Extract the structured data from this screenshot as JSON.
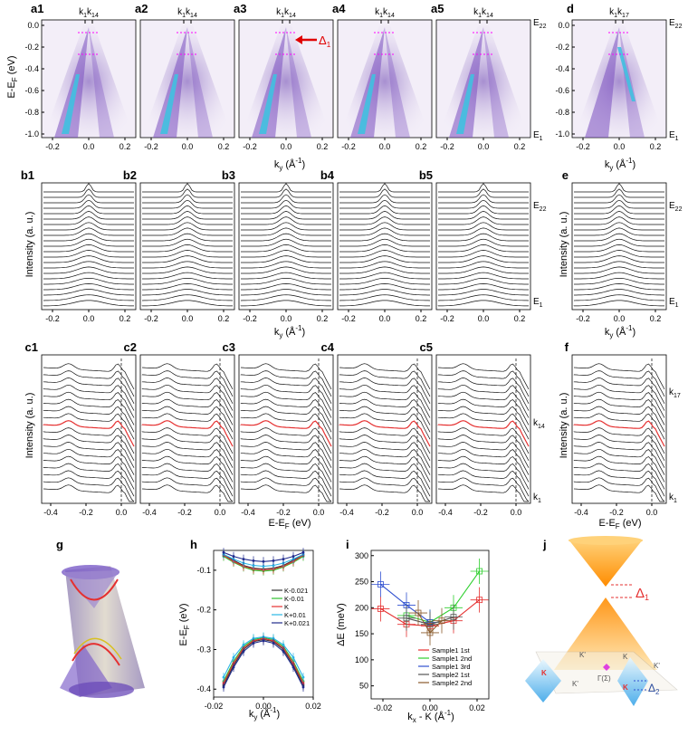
{
  "panels": {
    "a": [
      "a1",
      "a2",
      "a3",
      "a4",
      "a5"
    ],
    "b": [
      "b1",
      "b2",
      "b3",
      "b4",
      "b5"
    ],
    "c": [
      "c1",
      "c2",
      "c3",
      "c4",
      "c5"
    ],
    "d": "d",
    "e": "e",
    "f": "f",
    "g": "g",
    "h": "h",
    "i": "i",
    "j": "j"
  },
  "row_a": {
    "ylabel": "E-E",
    "ylabel_sub": "F",
    "ylabel_unit": " (eV)",
    "yticks": [
      "0.0",
      "-0.2",
      "-0.4",
      "-0.6",
      "-0.8",
      "-1.0"
    ],
    "xticks": [
      "-0.2",
      "0.0",
      "0.2"
    ],
    "xlabel": "k",
    "xlabel_sub": "y",
    "xlabel_unit": " (Å",
    "xlabel_sup": "-1",
    "xlabel_close": ")",
    "top_marker": "k",
    "top_marker_sub1": "1",
    "top_marker_mid": "k",
    "top_marker_sub2": "14",
    "d_marker_sub2": "17",
    "right_top": "E",
    "right_top_sub": "22",
    "right_bottom": "E",
    "right_bottom_sub": "1",
    "delta": "Δ",
    "delta_sub": "1"
  },
  "row_b": {
    "ylabel": "Intensity (a. u.)",
    "xticks": [
      "-0.2",
      "0.0",
      "0.2"
    ],
    "right_top": "E",
    "right_top_sub": "22",
    "right_bottom": "E",
    "right_bottom_sub": "1"
  },
  "row_c": {
    "ylabel": "Intensity (a. u.)",
    "xticks": [
      "-0.4",
      "-0.2",
      "0.0"
    ],
    "xlabel": "E-E",
    "xlabel_sub": "F",
    "xlabel_unit": " (eV)",
    "right_mid": "k",
    "right_mid_sub": "14",
    "right_bottom": "k",
    "right_bottom_sub": "1",
    "f_right_top": "k",
    "f_right_top_sub": "17"
  },
  "panel_h": {
    "ylabel": "E-E",
    "ylabel_sub": "F",
    "ylabel_unit": " (eV)",
    "yticks": [
      "-0.1",
      "-0.2",
      "-0.3",
      "-0.4"
    ],
    "xticks": [
      "-0.02",
      "0.00",
      "0.02"
    ],
    "xlabel": "k",
    "xlabel_sub": "y",
    "xlabel_unit": " (Å",
    "xlabel_sup": "-1",
    "xlabel_close": ")",
    "legend": [
      {
        "name": "K-0.021",
        "color": "#333333"
      },
      {
        "name": "K-0.01",
        "color": "#2fbf2f"
      },
      {
        "name": "K",
        "color": "#e53030"
      },
      {
        "name": "K+0.01",
        "color": "#29b6e6"
      },
      {
        "name": "K+0.021",
        "color": "#1f2a8c"
      }
    ]
  },
  "panel_i": {
    "ylabel": "ΔE (meV)",
    "yticks": [
      "300",
      "250",
      "200",
      "150",
      "100",
      "50"
    ],
    "xticks": [
      "-0.02",
      "0.00",
      "0.02"
    ],
    "xlabel": "k",
    "xlabel_sub": "x",
    "xlabel_mid": " - K (Å",
    "xlabel_sup": "-1",
    "xlabel_close": ")",
    "legend": [
      {
        "name": "Sample1 1st",
        "color": "#e53030"
      },
      {
        "name": "Sample1 2nd",
        "color": "#2fcf2f"
      },
      {
        "name": "Sample1 3rd",
        "color": "#3050d0"
      },
      {
        "name": "Sample2 1st",
        "color": "#555555"
      },
      {
        "name": "Sample2 2nd",
        "color": "#8a5a2a"
      }
    ]
  },
  "panel_j": {
    "delta1": "Δ",
    "delta1_sub": "1",
    "delta2": "Δ",
    "delta2_sub": "2",
    "gamma": "Γ(Σ)",
    "k_labels": [
      "K",
      "K'",
      "K",
      "K'",
      "K",
      "K'"
    ]
  },
  "colors": {
    "spectral_bg": "#f3eef8",
    "spectral_mid": "#7a4fc0",
    "spectral_hot": "#40c0e0",
    "edc_highlight": "#e53030",
    "marker_dash": "#ff00ff",
    "arrow": "#e00000"
  },
  "chart_data": [
    {
      "type": "line",
      "panel": "h",
      "xlim": [
        -0.02,
        0.02
      ],
      "ylim": [
        -0.42,
        -0.05
      ],
      "x": [
        -0.016,
        -0.012,
        -0.008,
        -0.004,
        0.0,
        0.004,
        0.008,
        0.012,
        0.016
      ],
      "series": [
        {
          "name": "K-0.021",
          "upper": [
            -0.06,
            -0.075,
            -0.088,
            -0.095,
            -0.097,
            -0.095,
            -0.088,
            -0.075,
            -0.06
          ],
          "lower": [
            -0.39,
            -0.34,
            -0.3,
            -0.28,
            -0.275,
            -0.28,
            -0.3,
            -0.34,
            -0.39
          ]
        },
        {
          "name": "K-0.01",
          "upper": [
            -0.065,
            -0.08,
            -0.092,
            -0.1,
            -0.102,
            -0.1,
            -0.092,
            -0.08,
            -0.065
          ],
          "lower": [
            -0.38,
            -0.33,
            -0.292,
            -0.275,
            -0.27,
            -0.275,
            -0.292,
            -0.33,
            -0.38
          ]
        },
        {
          "name": "K",
          "upper": [
            -0.062,
            -0.078,
            -0.09,
            -0.097,
            -0.099,
            -0.097,
            -0.09,
            -0.078,
            -0.062
          ],
          "lower": [
            -0.385,
            -0.335,
            -0.296,
            -0.278,
            -0.272,
            -0.278,
            -0.296,
            -0.335,
            -0.385
          ]
        },
        {
          "name": "K+0.01",
          "upper": [
            -0.06,
            -0.072,
            -0.082,
            -0.088,
            -0.09,
            -0.088,
            -0.082,
            -0.072,
            -0.06
          ],
          "lower": [
            -0.37,
            -0.32,
            -0.288,
            -0.272,
            -0.268,
            -0.272,
            -0.288,
            -0.32,
            -0.37
          ]
        },
        {
          "name": "K+0.021",
          "upper": [
            -0.055,
            -0.065,
            -0.072,
            -0.076,
            -0.078,
            -0.076,
            -0.072,
            -0.065,
            -0.055
          ],
          "lower": [
            -0.395,
            -0.345,
            -0.305,
            -0.284,
            -0.278,
            -0.284,
            -0.305,
            -0.345,
            -0.395
          ]
        }
      ]
    },
    {
      "type": "line",
      "panel": "i",
      "xlim": [
        -0.025,
        0.025
      ],
      "ylim": [
        25,
        310
      ],
      "series": [
        {
          "name": "Sample1 1st",
          "x": [
            -0.021,
            -0.01,
            0.0,
            0.01,
            0.021
          ],
          "y": [
            198,
            168,
            165,
            175,
            215
          ]
        },
        {
          "name": "Sample1 2nd",
          "x": [
            -0.01,
            0.0,
            0.01,
            0.021
          ],
          "y": [
            185,
            172,
            200,
            270
          ]
        },
        {
          "name": "Sample1 3rd",
          "x": [
            -0.021,
            -0.01,
            0.0
          ],
          "y": [
            245,
            205,
            172
          ]
        },
        {
          "name": "Sample2 1st",
          "x": [
            -0.01,
            0.0,
            0.01
          ],
          "y": [
            180,
            168,
            182
          ]
        },
        {
          "name": "Sample2 2nd",
          "x": [
            -0.005,
            0.0,
            0.005
          ],
          "y": [
            190,
            152,
            175
          ]
        }
      ]
    }
  ]
}
